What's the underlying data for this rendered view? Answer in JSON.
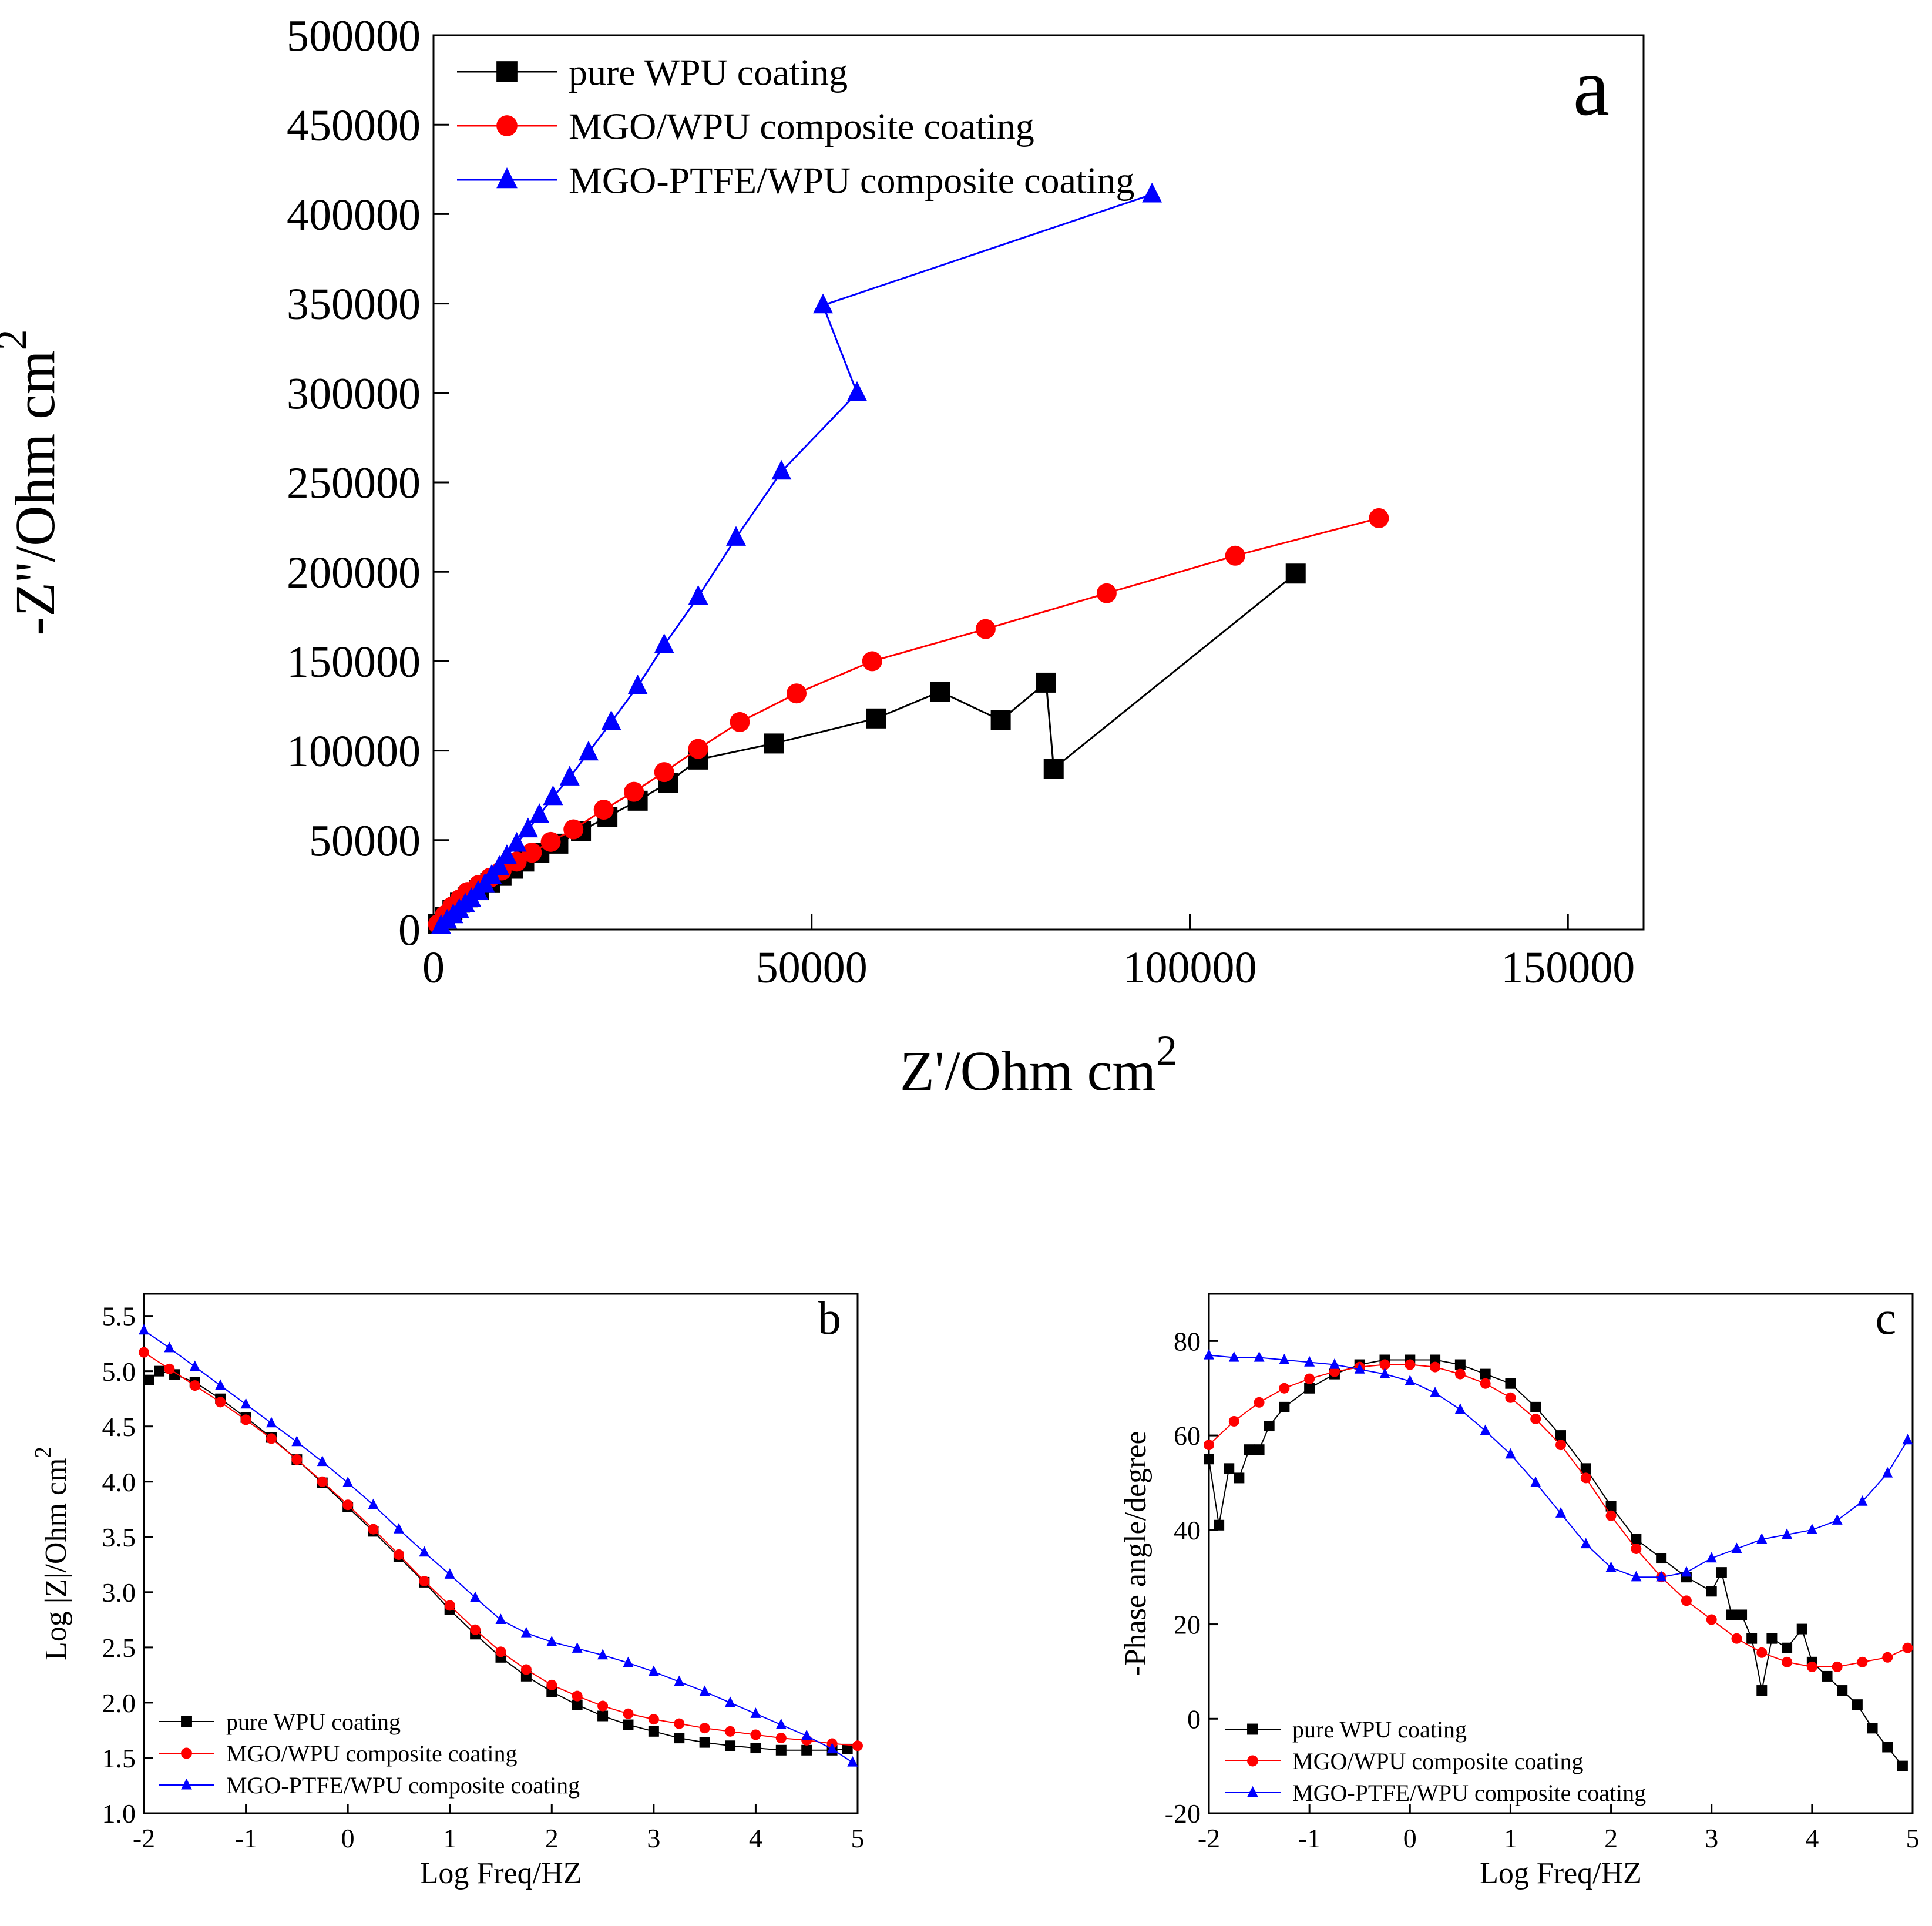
{
  "chart_data": [
    {
      "id": "a",
      "type": "line",
      "panel_label": "a",
      "xlabel": "Z'/Ohm cm",
      "xlabel_sup": "2",
      "ylabel": "-Z''/Ohm cm",
      "ylabel_sup": "2",
      "xlim": [
        0,
        160000
      ],
      "ylim": [
        0,
        500000
      ],
      "xticks": [
        0,
        50000,
        100000,
        150000
      ],
      "yticks": [
        0,
        50000,
        100000,
        150000,
        200000,
        250000,
        300000,
        350000,
        400000,
        450000,
        500000
      ],
      "legend_position": "top-left",
      "series": [
        {
          "name": "pure WPU coating",
          "color": "#000000",
          "marker": "square",
          "points": [
            [
              600,
              3000
            ],
            [
              1500,
              7000
            ],
            [
              2500,
              11000
            ],
            [
              3500,
              15000
            ],
            [
              4500,
              18000
            ],
            [
              6000,
              22000
            ],
            [
              7500,
              26000
            ],
            [
              9000,
              30000
            ],
            [
              10500,
              34000
            ],
            [
              12000,
              38000
            ],
            [
              14000,
              43000
            ],
            [
              16500,
              48000
            ],
            [
              19500,
              55000
            ],
            [
              23000,
              63000
            ],
            [
              27000,
              72000
            ],
            [
              31000,
              82000
            ],
            [
              35000,
              95000
            ],
            [
              45000,
              104000
            ],
            [
              58500,
              118000
            ],
            [
              67000,
              133000
            ],
            [
              75000,
              117000
            ],
            [
              81000,
              138000
            ],
            [
              82000,
              90000
            ],
            [
              114000,
              199000
            ]
          ]
        },
        {
          "name": "MGO/WPU composite coating",
          "color": "#ff0000",
          "marker": "circle",
          "points": [
            [
              600,
              3000
            ],
            [
              1500,
              8000
            ],
            [
              2500,
              13000
            ],
            [
              3500,
              17000
            ],
            [
              4500,
              21000
            ],
            [
              6000,
              25000
            ],
            [
              7500,
              29000
            ],
            [
              9000,
              33000
            ],
            [
              11000,
              38000
            ],
            [
              13000,
              43000
            ],
            [
              15500,
              49000
            ],
            [
              18500,
              56000
            ],
            [
              22500,
              67000
            ],
            [
              26500,
              77000
            ],
            [
              30500,
              88000
            ],
            [
              35000,
              101000
            ],
            [
              40500,
              116000
            ],
            [
              48000,
              132000
            ],
            [
              58000,
              150000
            ],
            [
              73000,
              168000
            ],
            [
              89000,
              188000
            ],
            [
              106000,
              209000
            ],
            [
              125000,
              230000
            ]
          ]
        },
        {
          "name": "MGO-PTFE/WPU composite coating",
          "color": "#0000ff",
          "marker": "triangle",
          "points": [
            [
              1000,
              2000
            ],
            [
              1800,
              5000
            ],
            [
              2600,
              8000
            ],
            [
              3400,
              11000
            ],
            [
              4200,
              14000
            ],
            [
              5000,
              17000
            ],
            [
              5900,
              21000
            ],
            [
              6800,
              25000
            ],
            [
              7700,
              30000
            ],
            [
              8700,
              35000
            ],
            [
              9700,
              41000
            ],
            [
              11000,
              48000
            ],
            [
              12500,
              56000
            ],
            [
              14000,
              64000
            ],
            [
              15800,
              74000
            ],
            [
              18000,
              85000
            ],
            [
              20500,
              99000
            ],
            [
              23500,
              116000
            ],
            [
              27000,
              136000
            ],
            [
              30500,
              159000
            ],
            [
              35000,
              186000
            ],
            [
              40000,
              219000
            ],
            [
              46000,
              256000
            ],
            [
              56000,
              300000
            ],
            [
              51500,
              349000
            ],
            [
              95000,
              411000
            ]
          ]
        }
      ]
    },
    {
      "id": "b",
      "type": "scatter",
      "panel_label": "b",
      "xlabel": "Log Freq/HZ",
      "ylabel": "Log |Z|/Ohm cm",
      "ylabel_sup": "2",
      "xlim": [
        -2,
        5
      ],
      "ylim": [
        1.0,
        5.7
      ],
      "xticks": [
        -2,
        -1,
        0,
        1,
        2,
        3,
        4,
        5
      ],
      "yticks": [
        1.0,
        1.5,
        2.0,
        2.5,
        3.0,
        3.5,
        4.0,
        4.5,
        5.0,
        5.5
      ],
      "xtick_labels": [
        "-2",
        "-1",
        "0",
        "1",
        "2",
        "3",
        "4",
        "5"
      ],
      "ytick_labels": [
        "1.0",
        "1.5",
        "2.0",
        "2.5",
        "3.0",
        "3.5",
        "4.0",
        "4.5",
        "5.0",
        "5.5"
      ],
      "legend_position": "bottom-left",
      "series": [
        {
          "name": "pure WPU coating",
          "color": "#000000",
          "marker": "square",
          "x": [
            -1.95,
            -1.85,
            -1.7,
            -1.5,
            -1.25,
            -1.0,
            -0.75,
            -0.5,
            -0.25,
            0.0,
            0.25,
            0.5,
            0.75,
            1.0,
            1.25,
            1.5,
            1.75,
            2.0,
            2.25,
            2.5,
            2.75,
            3.0,
            3.25,
            3.5,
            3.75,
            4.0,
            4.25,
            4.5,
            4.75,
            4.9
          ],
          "y": [
            4.92,
            5.0,
            4.97,
            4.9,
            4.75,
            4.58,
            4.4,
            4.2,
            3.99,
            3.77,
            3.55,
            3.32,
            3.09,
            2.84,
            2.62,
            2.41,
            2.24,
            2.1,
            1.98,
            1.88,
            1.8,
            1.74,
            1.68,
            1.64,
            1.61,
            1.59,
            1.57,
            1.57,
            1.57,
            1.58
          ]
        },
        {
          "name": "MGO/WPU composite coating",
          "color": "#ff0000",
          "marker": "circle",
          "x": [
            -2.0,
            -1.75,
            -1.5,
            -1.25,
            -1.0,
            -0.75,
            -0.5,
            -0.25,
            0.0,
            0.25,
            0.5,
            0.75,
            1.0,
            1.25,
            1.5,
            1.75,
            2.0,
            2.25,
            2.5,
            2.75,
            3.0,
            3.25,
            3.5,
            3.75,
            4.0,
            4.25,
            4.5,
            4.75,
            5.0
          ],
          "y": [
            5.17,
            5.02,
            4.87,
            4.72,
            4.56,
            4.39,
            4.2,
            4.0,
            3.79,
            3.57,
            3.34,
            3.1,
            2.88,
            2.66,
            2.46,
            2.3,
            2.16,
            2.06,
            1.97,
            1.9,
            1.85,
            1.81,
            1.77,
            1.74,
            1.71,
            1.68,
            1.66,
            1.63,
            1.61
          ]
        },
        {
          "name": "MGO-PTFE/WPU composite coating",
          "color": "#0000ff",
          "marker": "triangle",
          "x": [
            -2.0,
            -1.75,
            -1.5,
            -1.25,
            -1.0,
            -0.75,
            -0.5,
            -0.25,
            0.0,
            0.25,
            0.5,
            0.75,
            1.0,
            1.25,
            1.5,
            1.75,
            2.0,
            2.25,
            2.5,
            2.75,
            3.0,
            3.25,
            3.5,
            3.75,
            4.0,
            4.25,
            4.5,
            4.75,
            4.95
          ],
          "y": [
            5.37,
            5.21,
            5.04,
            4.87,
            4.7,
            4.53,
            4.36,
            4.18,
            3.99,
            3.79,
            3.57,
            3.36,
            3.16,
            2.95,
            2.75,
            2.63,
            2.55,
            2.49,
            2.43,
            2.36,
            2.28,
            2.19,
            2.1,
            2.0,
            1.9,
            1.8,
            1.7,
            1.58,
            1.46
          ]
        }
      ]
    },
    {
      "id": "c",
      "type": "scatter",
      "panel_label": "c",
      "xlabel": "Log Freq/HZ",
      "ylabel": "-Phase angle/degree",
      "xlim": [
        -2,
        5
      ],
      "ylim": [
        -20,
        90
      ],
      "xticks": [
        -2,
        -1,
        0,
        1,
        2,
        3,
        4,
        5
      ],
      "yticks": [
        -20,
        0,
        20,
        40,
        60,
        80
      ],
      "xtick_labels": [
        "-2",
        "-1",
        "0",
        "1",
        "2",
        "3",
        "4",
        "5"
      ],
      "ytick_labels": [
        "-20",
        "0",
        "20",
        "40",
        "60",
        "80"
      ],
      "legend_position": "bottom-left",
      "series": [
        {
          "name": "pure WPU coating",
          "color": "#000000",
          "marker": "square",
          "x": [
            -2.0,
            -1.9,
            -1.8,
            -1.7,
            -1.6,
            -1.5,
            -1.4,
            -1.25,
            -1.0,
            -0.75,
            -0.5,
            -0.25,
            0.0,
            0.25,
            0.5,
            0.75,
            1.0,
            1.25,
            1.5,
            1.75,
            2.0,
            2.25,
            2.5,
            2.75,
            3.0,
            3.1,
            3.2,
            3.3,
            3.4,
            3.5,
            3.6,
            3.75,
            3.9,
            4.0,
            4.15,
            4.3,
            4.45,
            4.6,
            4.75,
            4.9
          ],
          "y": [
            55,
            41,
            53,
            51,
            57,
            57,
            62,
            66,
            70,
            73,
            75,
            76,
            76,
            76,
            75,
            73,
            71,
            66,
            60,
            53,
            45,
            38,
            34,
            30,
            27,
            31,
            22,
            22,
            17,
            6,
            17,
            15,
            19,
            12,
            9,
            6,
            3,
            -2,
            -6,
            -10
          ]
        },
        {
          "name": "MGO/WPU composite coating",
          "color": "#ff0000",
          "marker": "circle",
          "x": [
            -2.0,
            -1.75,
            -1.5,
            -1.25,
            -1.0,
            -0.75,
            -0.5,
            -0.25,
            0.0,
            0.25,
            0.5,
            0.75,
            1.0,
            1.25,
            1.5,
            1.75,
            2.0,
            2.25,
            2.5,
            2.75,
            3.0,
            3.25,
            3.5,
            3.75,
            4.0,
            4.25,
            4.5,
            4.75,
            4.95
          ],
          "y": [
            58,
            63,
            67,
            70,
            72,
            73.5,
            74.5,
            75,
            75,
            74.5,
            73,
            71,
            68,
            63.5,
            58,
            51,
            43,
            36,
            30,
            25,
            21,
            17,
            14,
            12,
            11,
            11,
            12,
            13,
            15
          ]
        },
        {
          "name": "MGO-PTFE/WPU composite coating",
          "color": "#0000ff",
          "marker": "triangle",
          "x": [
            -2.0,
            -1.75,
            -1.5,
            -1.25,
            -1.0,
            -0.75,
            -0.5,
            -0.25,
            0.0,
            0.25,
            0.5,
            0.75,
            1.0,
            1.25,
            1.5,
            1.75,
            2.0,
            2.25,
            2.5,
            2.75,
            3.0,
            3.25,
            3.5,
            3.75,
            4.0,
            4.25,
            4.5,
            4.75,
            4.95
          ],
          "y": [
            77,
            76.5,
            76.5,
            76,
            75.5,
            75,
            74,
            73,
            71.5,
            69,
            65.5,
            61,
            56,
            50,
            43.5,
            37,
            32,
            30,
            30,
            31,
            34,
            36,
            38,
            39,
            40,
            42,
            46,
            52,
            59
          ]
        }
      ]
    }
  ]
}
